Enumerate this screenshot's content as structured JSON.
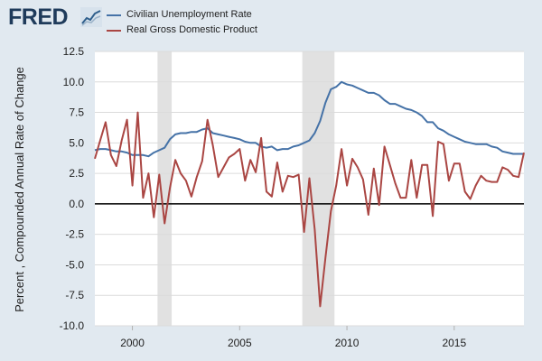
{
  "logo": {
    "text": "FRED",
    "icon": "chart-line-icon"
  },
  "chart_data": {
    "type": "line",
    "title": "",
    "xlabel": "",
    "ylabel": "Percent , Compounded Annual Rate of Change",
    "xlim": [
      1998.25,
      2018.25
    ],
    "ylim": [
      -10.0,
      12.5
    ],
    "y_ticks": [
      "-10.0",
      "-7.5",
      "-5.0",
      "-2.5",
      "0.0",
      "2.5",
      "5.0",
      "7.5",
      "10.0",
      "12.5"
    ],
    "x_ticks": [
      "2000",
      "2005",
      "2010",
      "2015"
    ],
    "grid": true,
    "legend_placement": "top-left",
    "recessions": [
      [
        2001.17,
        2001.83
      ],
      [
        2007.92,
        2009.42
      ]
    ],
    "series": [
      {
        "name": "Civilian Unemployment Rate",
        "color": "#4572a7",
        "points": [
          [
            1998.25,
            4.4
          ],
          [
            1998.5,
            4.5
          ],
          [
            1998.75,
            4.5
          ],
          [
            1999.0,
            4.4
          ],
          [
            1999.25,
            4.3
          ],
          [
            1999.5,
            4.3
          ],
          [
            1999.75,
            4.2
          ],
          [
            2000.0,
            4.0
          ],
          [
            2000.25,
            4.0
          ],
          [
            2000.5,
            4.0
          ],
          [
            2000.75,
            3.9
          ],
          [
            2001.0,
            4.2
          ],
          [
            2001.25,
            4.4
          ],
          [
            2001.5,
            4.6
          ],
          [
            2001.75,
            5.3
          ],
          [
            2002.0,
            5.7
          ],
          [
            2002.25,
            5.8
          ],
          [
            2002.5,
            5.8
          ],
          [
            2002.75,
            5.9
          ],
          [
            2003.0,
            5.9
          ],
          [
            2003.25,
            6.1
          ],
          [
            2003.5,
            6.2
          ],
          [
            2003.75,
            5.8
          ],
          [
            2004.0,
            5.7
          ],
          [
            2004.25,
            5.6
          ],
          [
            2004.5,
            5.5
          ],
          [
            2004.75,
            5.4
          ],
          [
            2005.0,
            5.3
          ],
          [
            2005.25,
            5.1
          ],
          [
            2005.5,
            5.0
          ],
          [
            2005.75,
            5.0
          ],
          [
            2006.0,
            4.7
          ],
          [
            2006.25,
            4.6
          ],
          [
            2006.5,
            4.7
          ],
          [
            2006.75,
            4.4
          ],
          [
            2007.0,
            4.5
          ],
          [
            2007.25,
            4.5
          ],
          [
            2007.5,
            4.7
          ],
          [
            2007.75,
            4.8
          ],
          [
            2008.0,
            5.0
          ],
          [
            2008.25,
            5.2
          ],
          [
            2008.5,
            5.8
          ],
          [
            2008.75,
            6.8
          ],
          [
            2009.0,
            8.3
          ],
          [
            2009.25,
            9.4
          ],
          [
            2009.5,
            9.6
          ],
          [
            2009.75,
            10.0
          ],
          [
            2010.0,
            9.8
          ],
          [
            2010.25,
            9.7
          ],
          [
            2010.5,
            9.5
          ],
          [
            2010.75,
            9.3
          ],
          [
            2011.0,
            9.1
          ],
          [
            2011.25,
            9.1
          ],
          [
            2011.5,
            8.9
          ],
          [
            2011.75,
            8.5
          ],
          [
            2012.0,
            8.2
          ],
          [
            2012.25,
            8.2
          ],
          [
            2012.5,
            8.0
          ],
          [
            2012.75,
            7.8
          ],
          [
            2013.0,
            7.7
          ],
          [
            2013.25,
            7.5
          ],
          [
            2013.5,
            7.2
          ],
          [
            2013.75,
            6.7
          ],
          [
            2014.0,
            6.7
          ],
          [
            2014.25,
            6.2
          ],
          [
            2014.5,
            6.0
          ],
          [
            2014.75,
            5.7
          ],
          [
            2015.0,
            5.5
          ],
          [
            2015.25,
            5.3
          ],
          [
            2015.5,
            5.1
          ],
          [
            2015.75,
            5.0
          ],
          [
            2016.0,
            4.9
          ],
          [
            2016.25,
            4.9
          ],
          [
            2016.5,
            4.9
          ],
          [
            2016.75,
            4.7
          ],
          [
            2017.0,
            4.6
          ],
          [
            2017.25,
            4.3
          ],
          [
            2017.5,
            4.2
          ],
          [
            2017.75,
            4.1
          ],
          [
            2018.0,
            4.1
          ],
          [
            2018.25,
            4.1
          ]
        ]
      },
      {
        "name": "Real Gross Domestic Product",
        "color": "#aa4643",
        "points": [
          [
            1998.25,
            3.7
          ],
          [
            1998.5,
            5.2
          ],
          [
            1998.75,
            6.7
          ],
          [
            1999.0,
            4.0
          ],
          [
            1999.25,
            3.1
          ],
          [
            1999.5,
            5.2
          ],
          [
            1999.75,
            6.9
          ],
          [
            2000.0,
            1.5
          ],
          [
            2000.25,
            7.5
          ],
          [
            2000.5,
            0.5
          ],
          [
            2000.75,
            2.5
          ],
          [
            2001.0,
            -1.1
          ],
          [
            2001.25,
            2.4
          ],
          [
            2001.5,
            -1.6
          ],
          [
            2001.75,
            1.3
          ],
          [
            2002.0,
            3.6
          ],
          [
            2002.25,
            2.5
          ],
          [
            2002.5,
            1.9
          ],
          [
            2002.75,
            0.6
          ],
          [
            2003.0,
            2.2
          ],
          [
            2003.25,
            3.5
          ],
          [
            2003.5,
            6.9
          ],
          [
            2003.75,
            4.8
          ],
          [
            2004.0,
            2.2
          ],
          [
            2004.25,
            3.0
          ],
          [
            2004.5,
            3.8
          ],
          [
            2004.75,
            4.1
          ],
          [
            2005.0,
            4.5
          ],
          [
            2005.25,
            1.9
          ],
          [
            2005.5,
            3.6
          ],
          [
            2005.75,
            2.6
          ],
          [
            2006.0,
            5.4
          ],
          [
            2006.25,
            1.0
          ],
          [
            2006.5,
            0.6
          ],
          [
            2006.75,
            3.4
          ],
          [
            2007.0,
            1.0
          ],
          [
            2007.25,
            2.3
          ],
          [
            2007.5,
            2.2
          ],
          [
            2007.75,
            2.4
          ],
          [
            2008.0,
            -2.3
          ],
          [
            2008.25,
            2.1
          ],
          [
            2008.5,
            -2.1
          ],
          [
            2008.75,
            -8.4
          ],
          [
            2009.0,
            -4.4
          ],
          [
            2009.25,
            -0.6
          ],
          [
            2009.5,
            1.5
          ],
          [
            2009.75,
            4.5
          ],
          [
            2010.0,
            1.5
          ],
          [
            2010.25,
            3.7
          ],
          [
            2010.5,
            3.0
          ],
          [
            2010.75,
            2.0
          ],
          [
            2011.0,
            -0.9
          ],
          [
            2011.25,
            2.9
          ],
          [
            2011.5,
            -0.1
          ],
          [
            2011.75,
            4.7
          ],
          [
            2012.0,
            3.2
          ],
          [
            2012.25,
            1.7
          ],
          [
            2012.5,
            0.5
          ],
          [
            2012.75,
            0.5
          ],
          [
            2013.0,
            3.6
          ],
          [
            2013.25,
            0.5
          ],
          [
            2013.5,
            3.2
          ],
          [
            2013.75,
            3.2
          ],
          [
            2014.0,
            -1.0
          ],
          [
            2014.25,
            5.1
          ],
          [
            2014.5,
            4.9
          ],
          [
            2014.75,
            1.9
          ],
          [
            2015.0,
            3.3
          ],
          [
            2015.25,
            3.3
          ],
          [
            2015.5,
            1.0
          ],
          [
            2015.75,
            0.4
          ],
          [
            2016.0,
            1.5
          ],
          [
            2016.25,
            2.3
          ],
          [
            2016.5,
            1.9
          ],
          [
            2016.75,
            1.8
          ],
          [
            2017.0,
            1.8
          ],
          [
            2017.25,
            3.0
          ],
          [
            2017.5,
            2.8
          ],
          [
            2017.75,
            2.3
          ],
          [
            2018.0,
            2.2
          ],
          [
            2018.25,
            4.2
          ]
        ]
      }
    ]
  }
}
